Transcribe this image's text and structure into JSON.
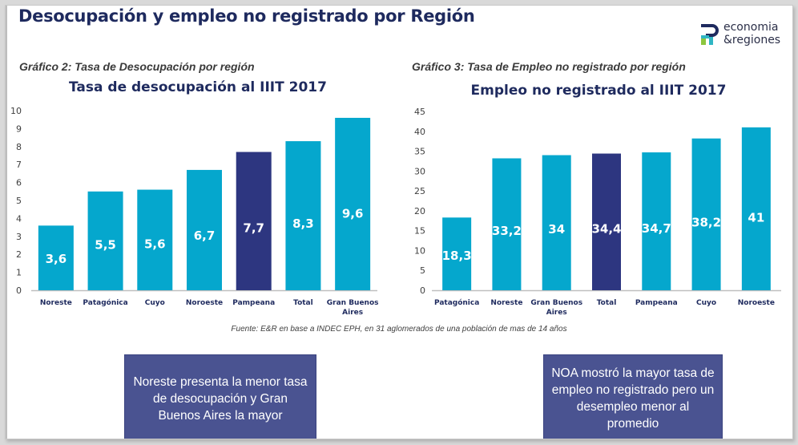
{
  "header": {
    "title": "Desocupación y empleo no registrado por Región",
    "logo": {
      "icon": "er-logo-icon",
      "line1": "economia",
      "line2": "&regiones"
    }
  },
  "source_note": "Fuente: E&R en base a INDEC EPH, en 31 aglomerados de una población de mas de 14 años",
  "callouts": [
    "Noreste presenta la menor tasa de desocupación y Gran Buenos Aires la mayor",
    "NOA mostró la mayor tasa de empleo no registrado pero un desempleo menor al promedio"
  ],
  "colors": {
    "bar": "#05a7cd",
    "highlight": "#2d3680",
    "title": "#1e2a5e",
    "callout": "#4a5391"
  },
  "chart_data": [
    {
      "type": "bar",
      "caption": "Gráfico 2: Tasa de Desocupación por región",
      "title": "Tasa de desocupación al IIIT 2017",
      "categories": [
        "Noreste",
        "Patagónica",
        "Cuyo",
        "Noroeste",
        "Pampeana",
        "Total",
        "Gran Buenos Aires"
      ],
      "values": [
        3.6,
        5.5,
        5.6,
        6.7,
        7.7,
        8.3,
        9.6
      ],
      "labels": [
        "3,6",
        "5,5",
        "5,6",
        "6,7",
        "7,7",
        "8,3",
        "9,6"
      ],
      "highlight": [
        4
      ],
      "yticks": [
        0,
        1,
        2,
        3,
        4,
        5,
        6,
        7,
        8,
        9,
        10
      ],
      "ylim": [
        0,
        10
      ],
      "xlabel": "",
      "ylabel": "",
      "grid": false,
      "legend": "none"
    },
    {
      "type": "bar",
      "caption": "Gráfico 3: Tasa de Empleo no registrado por región",
      "title": "Empleo no registrado al IIIT 2017",
      "categories": [
        "Patagónica",
        "Noreste",
        "Gran Buenos Aires",
        "Total",
        "Pampeana",
        "Cuyo",
        "Noroeste"
      ],
      "values": [
        18.3,
        33.2,
        34,
        34.4,
        34.7,
        38.2,
        41
      ],
      "labels": [
        "18,3",
        "33,2",
        "34",
        "34,4",
        "34,7",
        "38,2",
        "41"
      ],
      "highlight": [
        3
      ],
      "yticks": [
        0,
        5,
        10,
        15,
        20,
        25,
        30,
        35,
        40,
        45
      ],
      "ylim": [
        0,
        45
      ],
      "xlabel": "",
      "ylabel": "",
      "grid": false,
      "legend": "none"
    }
  ]
}
